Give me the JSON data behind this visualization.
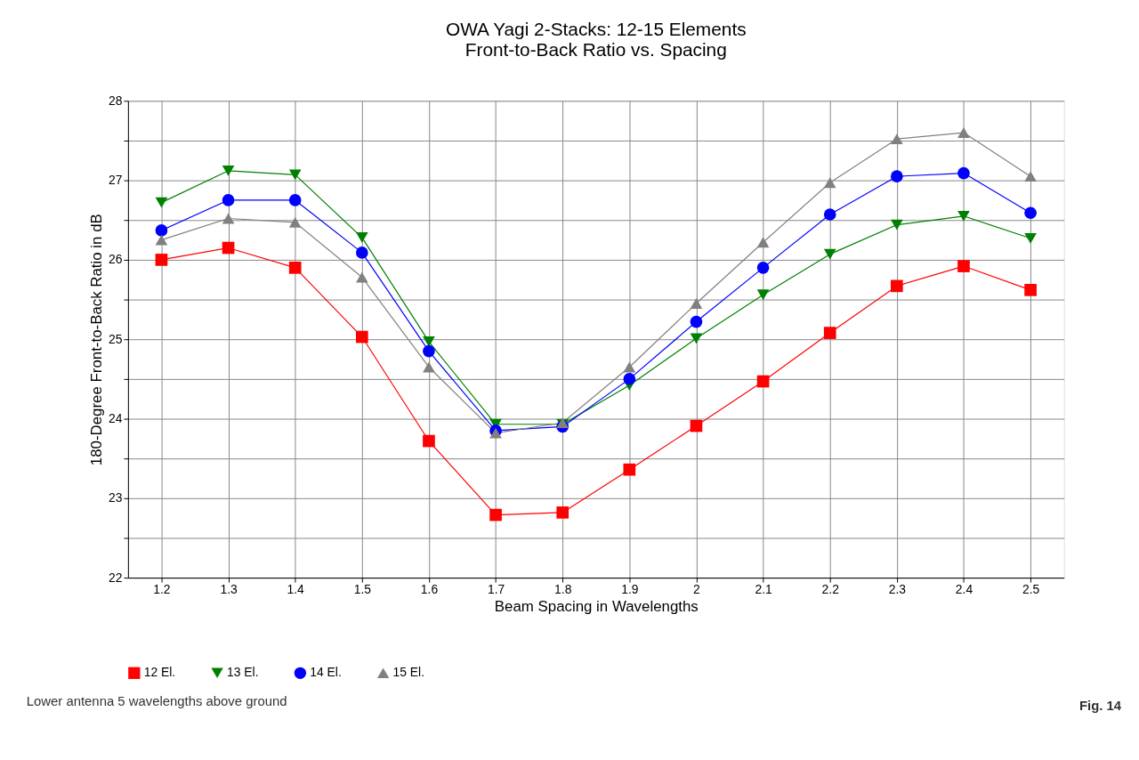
{
  "chart_data": {
    "type": "line",
    "title": "OWA Yagi 2-Stacks: 12-15 Elements\nFront-to-Back Ratio vs. Spacing",
    "xlabel": "Beam Spacing in Wavelengths",
    "ylabel": "180-Degree Front-to-Back Ratio in dB",
    "x": [
      1.2,
      1.3,
      1.4,
      1.5,
      1.6,
      1.7,
      1.8,
      1.9,
      2.0,
      2.1,
      2.2,
      2.3,
      2.4,
      2.5
    ],
    "series": [
      {
        "name": "12 El.",
        "color": "#ff0000",
        "marker": "square",
        "values": [
          26.0,
          26.15,
          25.9,
          25.03,
          23.72,
          22.79,
          22.82,
          23.36,
          23.91,
          24.47,
          25.08,
          25.67,
          25.92,
          25.62
        ]
      },
      {
        "name": "13 El.",
        "color": "#008000",
        "marker": "triangle-down",
        "values": [
          26.72,
          27.12,
          27.07,
          26.28,
          24.97,
          23.93,
          23.93,
          24.42,
          25.01,
          25.56,
          26.07,
          26.44,
          26.55,
          26.27
        ]
      },
      {
        "name": "14 El.",
        "color": "#0000ff",
        "marker": "circle",
        "values": [
          26.37,
          26.75,
          26.75,
          26.09,
          24.85,
          23.85,
          23.9,
          24.5,
          25.22,
          25.9,
          26.57,
          27.05,
          27.09,
          26.59
        ]
      },
      {
        "name": "15 El.",
        "color": "#808080",
        "marker": "triangle-up",
        "values": [
          26.25,
          26.52,
          26.47,
          25.78,
          24.65,
          23.82,
          23.95,
          24.65,
          25.45,
          26.22,
          26.97,
          27.52,
          27.6,
          27.05
        ]
      }
    ],
    "xlim": [
      1.15,
      2.55
    ],
    "xticks": [
      1.2,
      1.3,
      1.4,
      1.5,
      1.6,
      1.7,
      1.8,
      1.9,
      2,
      2.1,
      2.2,
      2.3,
      2.4,
      2.5
    ],
    "ylim": [
      22,
      28
    ],
    "yticks": [
      22,
      {
        "value": 22.5,
        "label": null
      },
      23,
      {
        "value": 23.5,
        "label": null
      },
      24,
      {
        "value": 24.5,
        "label": null
      },
      25,
      {
        "value": 25.5,
        "label": null
      },
      26,
      {
        "value": 26.5,
        "label": null
      },
      27,
      {
        "value": 27.5,
        "label": null
      },
      28
    ],
    "grid": true,
    "legend": "bottom",
    "line_style": "solid",
    "annotations": [
      "Lower antenna 5 wavelengths above ground",
      "Fig. 14"
    ]
  }
}
